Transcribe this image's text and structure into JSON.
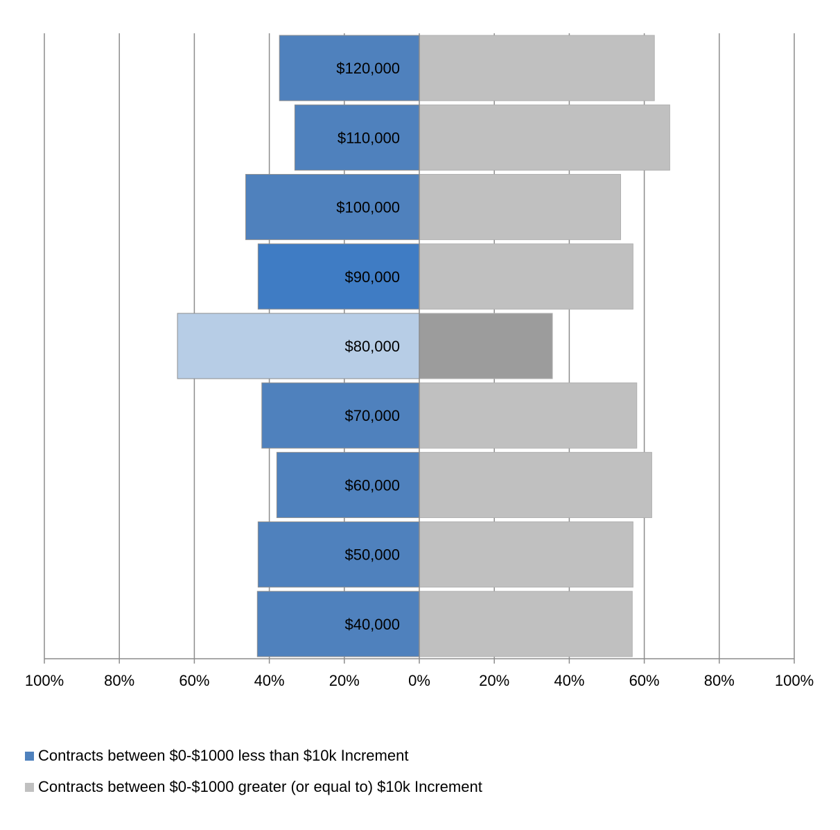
{
  "chart_data": {
    "type": "bar",
    "orientation": "horizontal-diverging",
    "categories": [
      "$120,000",
      "$110,000",
      "$100,000",
      "$90,000",
      "$80,000",
      "$70,000",
      "$60,000",
      "$50,000",
      "$40,000"
    ],
    "series": [
      {
        "name": "Contracts between $0-$1000 less than $10k Increment",
        "direction": "left",
        "color": "#4f81bd",
        "values": [
          37.3,
          33.2,
          46.3,
          43.0,
          64.5,
          42.0,
          38.0,
          43.0,
          43.2
        ]
      },
      {
        "name": "Contracts between $0-$1000 greater (or equal to) $10k Increment",
        "direction": "right",
        "color": "#c0c0c0",
        "values": [
          62.7,
          66.8,
          53.7,
          57.0,
          35.5,
          58.0,
          62.0,
          57.0,
          56.8
        ]
      }
    ],
    "highlight": {
      "$90,000": {
        "left_color": "#3f7cc4",
        "right_color": "#c0c0c0"
      },
      "$80,000": {
        "left_color": "#b7cde6",
        "right_color": "#9c9c9c"
      }
    },
    "xlim": [
      -100,
      100
    ],
    "x_ticks": [
      "100%",
      "80%",
      "60%",
      "40%",
      "20%",
      "0%",
      "20%",
      "40%",
      "60%",
      "80%",
      "100%"
    ],
    "grid": "vertical",
    "legend": "bottom-left"
  }
}
